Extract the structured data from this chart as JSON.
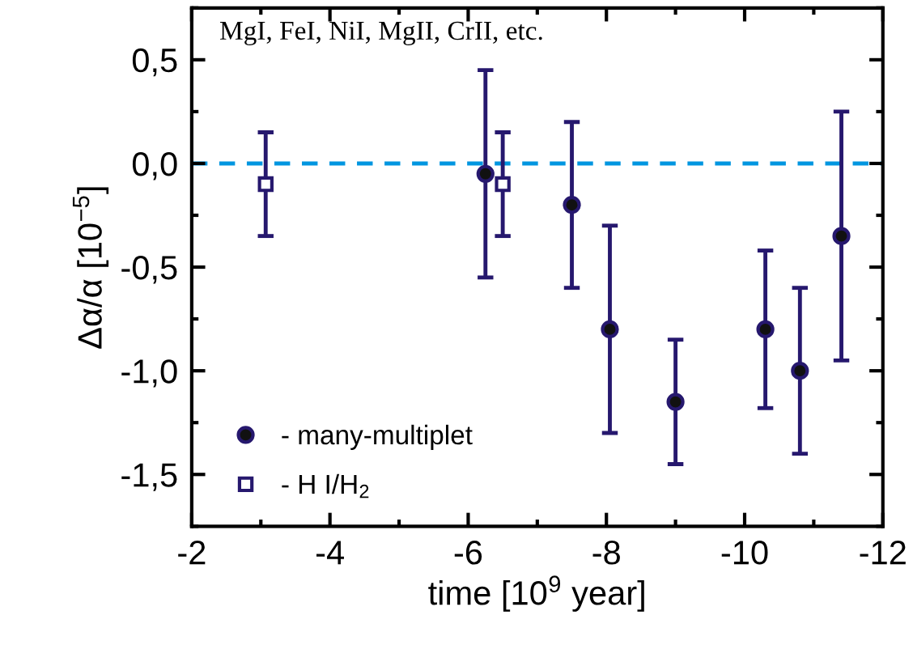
{
  "chart_data": {
    "type": "scatter",
    "xlabel": "time [10$^{9}$ year]",
    "ylabel": "Δα/α [10$^{−5}$]",
    "annotations": [
      "MgI, FeI, NiI, MgII, CrII, etc."
    ],
    "xlim": [
      -2,
      -12
    ],
    "xticks": [
      -2,
      -4,
      -6,
      -8,
      -10,
      -12
    ],
    "ylim": [
      -1.75,
      0.75
    ],
    "yticks": [
      {
        "value": 0.5,
        "label": "0,5"
      },
      {
        "value": 0.0,
        "label": "0,0"
      },
      {
        "value": -0.5,
        "label": "-0,5"
      },
      {
        "value": -1.0,
        "label": "-1,0"
      },
      {
        "value": -1.5,
        "label": "-1,5"
      }
    ],
    "series": [
      {
        "name": "- many-multiplet",
        "color": "#26186e",
        "marker": "circle",
        "x": [
          -6.25,
          -7.5,
          -8.05,
          -9.0,
          -10.3,
          -10.8,
          -11.4
        ],
        "values": [
          -0.05,
          -0.2,
          -0.8,
          -1.15,
          -0.8,
          -1.0,
          -0.35
        ],
        "errors": [
          [
            -0.55,
            0.45
          ],
          [
            -0.6,
            0.2
          ],
          [
            -1.3,
            -0.3
          ],
          [
            -1.45,
            -0.85
          ],
          [
            -1.18,
            -0.42
          ],
          [
            -1.4,
            -0.6
          ],
          [
            -0.95,
            0.25
          ]
        ]
      },
      {
        "name": "- H I/H$_{2}$",
        "color": "#26186e",
        "marker": "square",
        "x": [
          -3.07,
          -6.5
        ],
        "values": [
          -0.1,
          -0.1
        ],
        "errors": [
          [
            -0.35,
            0.15
          ],
          [
            -0.35,
            0.15
          ]
        ]
      }
    ],
    "ref_lines": [
      {
        "axis": "y",
        "value": 0,
        "color": "#0096e0",
        "line_style": "dashed"
      }
    ],
    "legend": "bottom left",
    "grid": false
  }
}
